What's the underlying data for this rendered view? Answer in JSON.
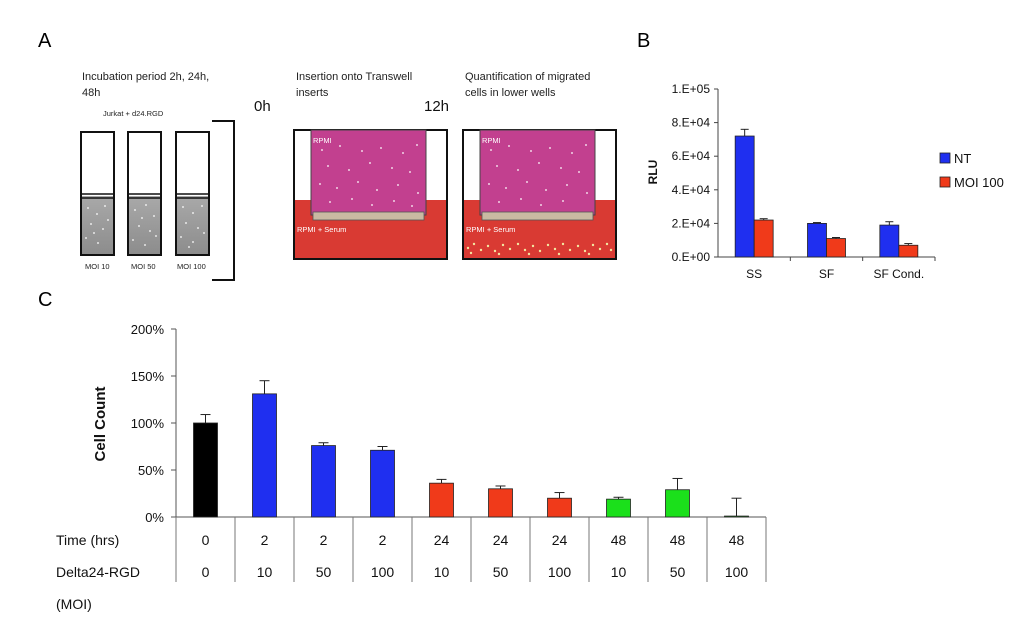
{
  "panel_a": {
    "letter": "A",
    "step1_line1": "Incubation period 2h, 24h,",
    "step1_line2": "48h",
    "tube_group_label": "Jurkat + d24.RGD",
    "tubes": [
      "MOI 10",
      "MOI 50",
      "MOI 100"
    ],
    "time_0": "0h",
    "step2_line1": "Insertion onto Transwell",
    "step2_line2": "inserts",
    "time_12": "12h",
    "step3_line1": "Quantification of migrated",
    "step3_line2": "cells in lower wells",
    "well1_upper": "RPMI",
    "well1_lower": "RPMI + Serum",
    "well2_upper": "RPMI",
    "well2_lower": "RPMI + Serum"
  },
  "chart_data": [
    {
      "panel": "B",
      "type": "bar",
      "title": "",
      "xlabel": "",
      "ylabel": "RLU",
      "ylim": [
        0,
        100000
      ],
      "yticks": [
        0,
        20000,
        40000,
        60000,
        80000,
        100000
      ],
      "ytick_labels": [
        "0.E+00",
        "2.E+04",
        "4.E+04",
        "6.E+04",
        "8.E+04",
        "1.E+05"
      ],
      "categories": [
        "SS",
        "SF",
        "SF Cond."
      ],
      "series": [
        {
          "name": "NT",
          "color": "#1f2ff0",
          "values": [
            72000,
            20000,
            19000
          ],
          "errors": [
            4000,
            500,
            2000
          ]
        },
        {
          "name": "MOI 100",
          "color": "#f03a1a",
          "values": [
            22000,
            11000,
            7000
          ],
          "errors": [
            800,
            600,
            1000
          ]
        }
      ],
      "legend_position": "right"
    },
    {
      "panel": "C",
      "type": "bar",
      "title": "",
      "xlabel": "",
      "ylabel": "Cell Count",
      "ylim": [
        0,
        200
      ],
      "yticks": [
        0,
        50,
        100,
        150,
        200
      ],
      "ytick_labels": [
        "0%",
        "50%",
        "100%",
        "150%",
        "200%"
      ],
      "values": [
        100,
        131,
        76,
        71,
        36,
        30,
        20,
        19,
        29,
        1
      ],
      "errors": [
        9,
        14,
        3,
        4,
        4,
        3,
        6,
        2,
        12,
        19
      ],
      "colors": [
        "#000000",
        "#1f2ff0",
        "#1f2ff0",
        "#1f2ff0",
        "#f03a1a",
        "#f03a1a",
        "#f03a1a",
        "#1be01b",
        "#1be01b",
        "#1be01b"
      ],
      "table": {
        "row1_label": "Time (hrs)",
        "row1": [
          "0",
          "2",
          "2",
          "2",
          "24",
          "24",
          "24",
          "48",
          "48",
          "48"
        ],
        "row2_label": "Delta24-RGD",
        "row2": [
          "0",
          "10",
          "50",
          "100",
          "10",
          "50",
          "100",
          "10",
          "50",
          "100"
        ],
        "row3_label": "(MOI)"
      }
    }
  ]
}
